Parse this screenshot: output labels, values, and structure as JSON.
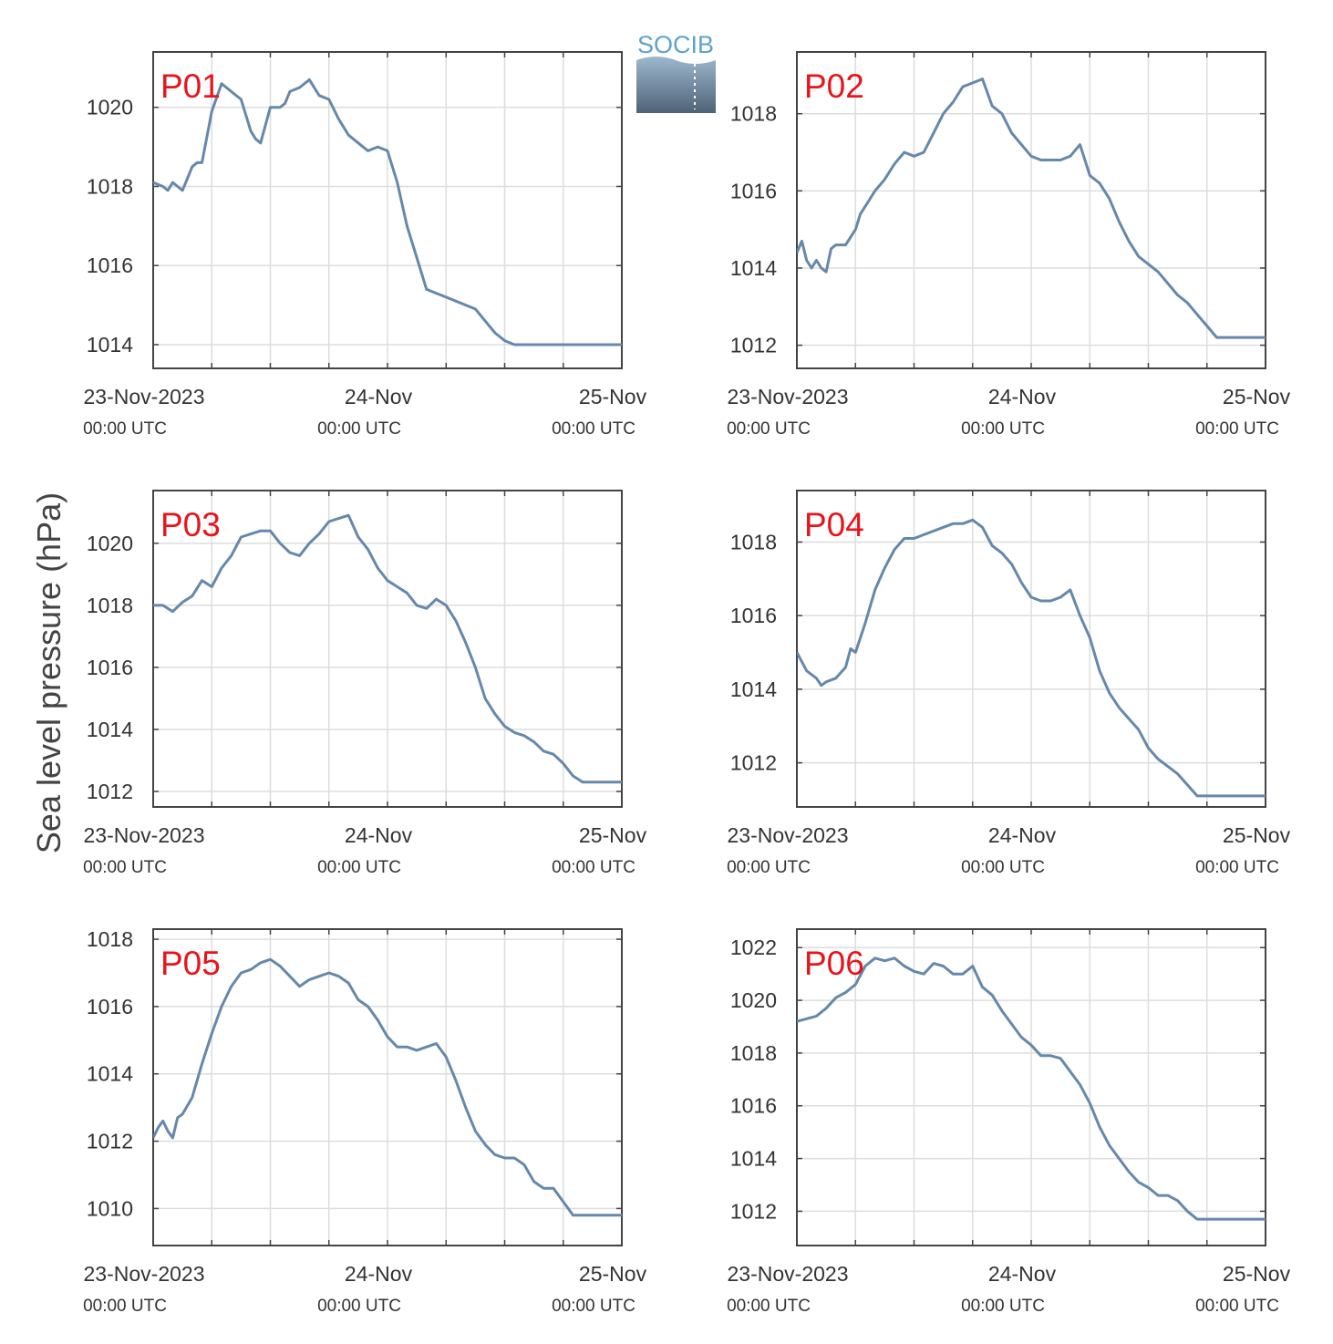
{
  "figure": {
    "ylabel": "Sea level pressure (hPa)",
    "logo_text": "SOCIB"
  },
  "colors": {
    "line": "#6688AA",
    "panel_label": "#E8141C",
    "grid": "#dddddd",
    "axis": "#444444",
    "logo_text": "#5EA3CC",
    "logo_top": "#9DB8CE",
    "logo_bottom": "#4E6277"
  },
  "chart_data": [
    {
      "type": "line",
      "panel": "P01",
      "x_range_hours": [
        0,
        48
      ],
      "xtick_labels": [
        {
          "hour": 0,
          "date": "23-Nov-2023",
          "time": "00:00 UTC"
        },
        {
          "hour": 24,
          "date": "24-Nov",
          "time": "00:00 UTC"
        },
        {
          "hour": 48,
          "date": "25-Nov",
          "time": "00:00 UTC"
        }
      ],
      "ylim": [
        1013.4,
        1021.4
      ],
      "yticks": [
        1014,
        1016,
        1018,
        1020
      ],
      "x": [
        0,
        1,
        1.5,
        2,
        2.5,
        3,
        3.5,
        4,
        4.5,
        5,
        6,
        7,
        7.5,
        8,
        9,
        10,
        10.5,
        11,
        12,
        13,
        13.5,
        14,
        15,
        16,
        17,
        18,
        19,
        20,
        21,
        22,
        23,
        24,
        25,
        26,
        27,
        28,
        29,
        30,
        31,
        32,
        33,
        34,
        35,
        36,
        37,
        38,
        39,
        40,
        41,
        42,
        43,
        44,
        45,
        46,
        47,
        48
      ],
      "y": [
        1018.1,
        1018.0,
        1017.9,
        1018.1,
        1018.0,
        1017.9,
        1018.2,
        1018.5,
        1018.6,
        1018.6,
        1019.9,
        1020.6,
        1020.5,
        1020.4,
        1020.2,
        1019.4,
        1019.2,
        1019.1,
        1020.0,
        1020.0,
        1020.1,
        1020.4,
        1020.5,
        1020.7,
        1020.3,
        1020.2,
        1019.7,
        1019.3,
        1019.1,
        1018.9,
        1019.0,
        1018.9,
        1018.1,
        1017.0,
        1016.2,
        1015.4,
        1015.3,
        1015.2,
        1015.1,
        1015.0,
        1014.9,
        1014.6,
        1014.3,
        1014.1,
        1014.0,
        1014.0,
        1014.0,
        1014.0,
        1014.0,
        1014.0,
        1014.0,
        1014.0,
        1014.0,
        1014.0,
        1014.0,
        1014.0
      ]
    },
    {
      "type": "line",
      "panel": "P02",
      "x_range_hours": [
        0,
        48
      ],
      "xtick_labels": [
        {
          "hour": 0,
          "date": "23-Nov-2023",
          "time": "00:00 UTC"
        },
        {
          "hour": 24,
          "date": "24-Nov",
          "time": "00:00 UTC"
        },
        {
          "hour": 48,
          "date": "25-Nov",
          "time": "00:00 UTC"
        }
      ],
      "ylim": [
        1011.4,
        1019.6
      ],
      "yticks": [
        1012,
        1014,
        1016,
        1018
      ],
      "x": [
        0,
        0.5,
        1,
        1.5,
        2,
        2.5,
        3,
        3.5,
        4,
        5,
        6,
        6.5,
        7,
        8,
        9,
        10,
        11,
        12,
        13,
        14,
        15,
        16,
        17,
        18,
        19,
        20,
        21,
        22,
        23,
        24,
        25,
        26,
        27,
        28,
        29,
        30,
        31,
        32,
        33,
        34,
        35,
        36,
        37,
        38,
        39,
        40,
        41,
        42,
        43,
        44,
        45,
        46,
        47,
        48
      ],
      "y": [
        1014.4,
        1014.7,
        1014.2,
        1014.0,
        1014.2,
        1014.0,
        1013.9,
        1014.5,
        1014.6,
        1014.6,
        1015.0,
        1015.4,
        1015.6,
        1016.0,
        1016.3,
        1016.7,
        1017.0,
        1016.9,
        1017.0,
        1017.5,
        1018.0,
        1018.3,
        1018.7,
        1018.8,
        1018.9,
        1018.2,
        1018.0,
        1017.5,
        1017.2,
        1016.9,
        1016.8,
        1016.8,
        1016.8,
        1016.9,
        1017.2,
        1016.4,
        1016.2,
        1015.8,
        1015.2,
        1014.7,
        1014.3,
        1014.1,
        1013.9,
        1013.6,
        1013.3,
        1013.1,
        1012.8,
        1012.5,
        1012.2,
        1012.2,
        1012.2,
        1012.2,
        1012.2,
        1012.2
      ]
    },
    {
      "type": "line",
      "panel": "P03",
      "x_range_hours": [
        0,
        48
      ],
      "xtick_labels": [
        {
          "hour": 0,
          "date": "23-Nov-2023",
          "time": "00:00 UTC"
        },
        {
          "hour": 24,
          "date": "24-Nov",
          "time": "00:00 UTC"
        },
        {
          "hour": 48,
          "date": "25-Nov",
          "time": "00:00 UTC"
        }
      ],
      "ylim": [
        1011.5,
        1021.7
      ],
      "yticks": [
        1012,
        1014,
        1016,
        1018,
        1020
      ],
      "x": [
        0,
        1,
        2,
        3,
        4,
        5,
        6,
        7,
        8,
        9,
        10,
        11,
        12,
        13,
        14,
        15,
        16,
        17,
        18,
        19,
        20,
        21,
        22,
        23,
        24,
        25,
        26,
        27,
        28,
        29,
        30,
        31,
        32,
        33,
        34,
        35,
        36,
        37,
        38,
        39,
        40,
        41,
        42,
        43,
        44,
        45,
        46,
        47,
        48
      ],
      "y": [
        1018.0,
        1018.0,
        1017.8,
        1018.1,
        1018.3,
        1018.8,
        1018.6,
        1019.2,
        1019.6,
        1020.2,
        1020.3,
        1020.4,
        1020.4,
        1020.0,
        1019.7,
        1019.6,
        1020.0,
        1020.3,
        1020.7,
        1020.8,
        1020.9,
        1020.2,
        1019.8,
        1019.2,
        1018.8,
        1018.6,
        1018.4,
        1018.0,
        1017.9,
        1018.2,
        1018.0,
        1017.5,
        1016.8,
        1016.0,
        1015.0,
        1014.5,
        1014.1,
        1013.9,
        1013.8,
        1013.6,
        1013.3,
        1013.2,
        1012.9,
        1012.5,
        1012.3,
        1012.3,
        1012.3,
        1012.3,
        1012.3
      ]
    },
    {
      "type": "line",
      "panel": "P04",
      "x_range_hours": [
        0,
        48
      ],
      "xtick_labels": [
        {
          "hour": 0,
          "date": "23-Nov-2023",
          "time": "00:00 UTC"
        },
        {
          "hour": 24,
          "date": "24-Nov",
          "time": "00:00 UTC"
        },
        {
          "hour": 48,
          "date": "25-Nov",
          "time": "00:00 UTC"
        }
      ],
      "ylim": [
        1010.8,
        1019.4
      ],
      "yticks": [
        1012,
        1014,
        1016,
        1018
      ],
      "x": [
        0,
        1,
        2,
        2.5,
        3,
        4,
        5,
        5.5,
        6,
        7,
        8,
        9,
        10,
        11,
        12,
        13,
        14,
        15,
        16,
        17,
        18,
        19,
        20,
        21,
        22,
        23,
        24,
        25,
        26,
        27,
        28,
        29,
        30,
        31,
        32,
        33,
        34,
        35,
        36,
        37,
        38,
        39,
        40,
        41,
        42,
        43,
        44,
        45,
        46,
        47,
        48
      ],
      "y": [
        1015.0,
        1014.5,
        1014.3,
        1014.1,
        1014.2,
        1014.3,
        1014.6,
        1015.1,
        1015.0,
        1015.8,
        1016.7,
        1017.3,
        1017.8,
        1018.1,
        1018.1,
        1018.2,
        1018.3,
        1018.4,
        1018.5,
        1018.5,
        1018.6,
        1018.4,
        1017.9,
        1017.7,
        1017.4,
        1016.9,
        1016.5,
        1016.4,
        1016.4,
        1016.5,
        1016.7,
        1016.0,
        1015.4,
        1014.5,
        1013.9,
        1013.5,
        1013.2,
        1012.9,
        1012.4,
        1012.1,
        1011.9,
        1011.7,
        1011.4,
        1011.1,
        1011.1,
        1011.1,
        1011.1,
        1011.1,
        1011.1,
        1011.1,
        1011.1
      ]
    },
    {
      "type": "line",
      "panel": "P05",
      "x_range_hours": [
        0,
        48
      ],
      "xtick_labels": [
        {
          "hour": 0,
          "date": "23-Nov-2023",
          "time": "00:00 UTC"
        },
        {
          "hour": 24,
          "date": "24-Nov",
          "time": "00:00 UTC"
        },
        {
          "hour": 48,
          "date": "25-Nov",
          "time": "00:00 UTC"
        }
      ],
      "ylim": [
        1008.9,
        1018.3
      ],
      "yticks": [
        1010,
        1012,
        1014,
        1016,
        1018
      ],
      "x": [
        0,
        0.5,
        1,
        1.5,
        2,
        2.5,
        3,
        4,
        5,
        6,
        7,
        8,
        9,
        10,
        11,
        12,
        13,
        14,
        15,
        16,
        17,
        18,
        19,
        20,
        21,
        22,
        23,
        24,
        25,
        26,
        27,
        28,
        29,
        30,
        31,
        32,
        33,
        34,
        35,
        36,
        37,
        38,
        39,
        40,
        41,
        42,
        43,
        44,
        45,
        46,
        47,
        48
      ],
      "y": [
        1012.1,
        1012.4,
        1012.6,
        1012.3,
        1012.1,
        1012.7,
        1012.8,
        1013.3,
        1014.3,
        1015.2,
        1016.0,
        1016.6,
        1017.0,
        1017.1,
        1017.3,
        1017.4,
        1017.2,
        1016.9,
        1016.6,
        1016.8,
        1016.9,
        1017.0,
        1016.9,
        1016.7,
        1016.2,
        1016.0,
        1015.6,
        1015.1,
        1014.8,
        1014.8,
        1014.7,
        1014.8,
        1014.9,
        1014.5,
        1013.8,
        1013.0,
        1012.3,
        1011.9,
        1011.6,
        1011.5,
        1011.5,
        1011.3,
        1010.8,
        1010.6,
        1010.6,
        1010.2,
        1009.8,
        1009.8,
        1009.8,
        1009.8,
        1009.8,
        1009.8
      ]
    },
    {
      "type": "line",
      "panel": "P06",
      "x_range_hours": [
        0,
        48
      ],
      "xtick_labels": [
        {
          "hour": 0,
          "date": "23-Nov-2023",
          "time": "00:00 UTC"
        },
        {
          "hour": 24,
          "date": "24-Nov",
          "time": "00:00 UTC"
        },
        {
          "hour": 48,
          "date": "25-Nov",
          "time": "00:00 UTC"
        }
      ],
      "ylim": [
        1010.7,
        1022.7
      ],
      "yticks": [
        1012,
        1014,
        1016,
        1018,
        1020,
        1022
      ],
      "x": [
        0,
        1,
        2,
        3,
        4,
        5,
        6,
        7,
        8,
        9,
        10,
        11,
        12,
        13,
        14,
        15,
        16,
        17,
        18,
        19,
        20,
        21,
        22,
        23,
        24,
        25,
        26,
        27,
        28,
        29,
        30,
        31,
        32,
        33,
        34,
        35,
        36,
        37,
        38,
        39,
        40,
        41,
        42,
        43,
        44,
        45,
        46,
        47,
        48
      ],
      "y": [
        1019.2,
        1019.3,
        1019.4,
        1019.7,
        1020.1,
        1020.3,
        1020.6,
        1021.3,
        1021.6,
        1021.5,
        1021.6,
        1021.3,
        1021.1,
        1021.0,
        1021.4,
        1021.3,
        1021.0,
        1021.0,
        1021.3,
        1020.5,
        1020.2,
        1019.6,
        1019.1,
        1018.6,
        1018.3,
        1017.9,
        1017.9,
        1017.8,
        1017.3,
        1016.8,
        1016.1,
        1015.2,
        1014.5,
        1014.0,
        1013.5,
        1013.1,
        1012.9,
        1012.6,
        1012.6,
        1012.4,
        1012.0,
        1011.7,
        1011.7,
        1011.7,
        1011.7,
        1011.7,
        1011.7,
        1011.7,
        1011.7
      ]
    }
  ]
}
